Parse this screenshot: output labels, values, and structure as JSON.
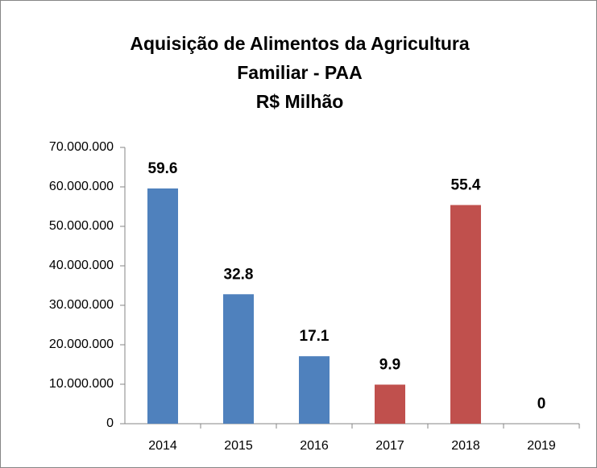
{
  "chart_data": {
    "type": "bar",
    "title": [
      "Aquisição de Alimentos da Agricultura",
      "Familiar - PAA",
      "R$ Milhão"
    ],
    "categories": [
      "2014",
      "2015",
      "2016",
      "2017",
      "2018",
      "2019"
    ],
    "values": [
      59600000,
      32800000,
      17100000,
      9900000,
      55400000,
      0
    ],
    "value_labels": [
      "59.6",
      "32.8",
      "17.1",
      "9.9",
      "55.4",
      "0"
    ],
    "colors": [
      "#4f81bd",
      "#4f81bd",
      "#4f81bd",
      "#c0504d",
      "#c0504d",
      "#c0504d"
    ],
    "ylim": [
      0,
      70000000
    ],
    "yticks": [
      0,
      {
        "value": 10000000,
        "label": "10.000.000"
      },
      {
        "value": 20000000,
        "label": "20.000.000"
      },
      {
        "value": 30000000,
        "label": "30.000.000"
      },
      {
        "value": 40000000,
        "label": "40.000.000"
      },
      {
        "value": 50000000,
        "label": "50.000.000"
      },
      {
        "value": 60000000,
        "label": "60.000.000"
      },
      {
        "value": 70000000,
        "label": "70.000.000"
      }
    ],
    "grid": false
  }
}
